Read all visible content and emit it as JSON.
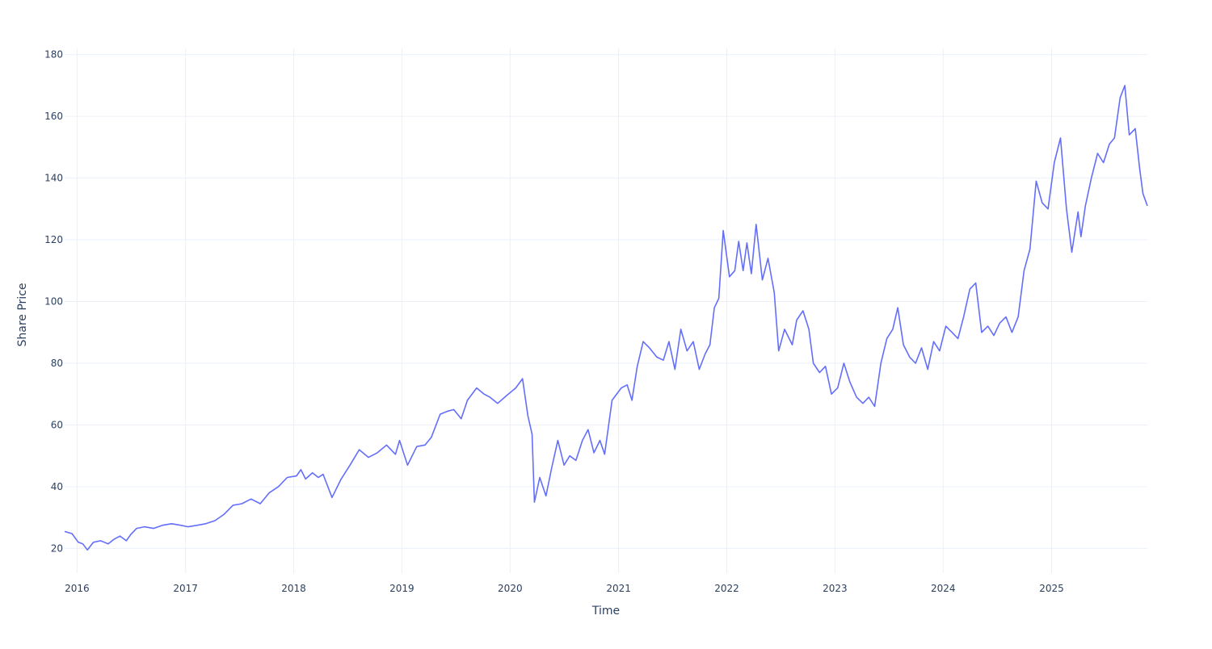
{
  "chart_data": {
    "type": "line",
    "title": "",
    "xlabel": "Time",
    "ylabel": "Share Price",
    "xlim": [
      "2015-11-20",
      "2025-11-20"
    ],
    "ylim": [
      12,
      182
    ],
    "x_ticks": [
      "2016",
      "2017",
      "2018",
      "2019",
      "2020",
      "2021",
      "2022",
      "2023",
      "2024",
      "2025"
    ],
    "y_ticks": [
      20,
      40,
      60,
      80,
      100,
      120,
      140,
      160,
      180
    ],
    "grid": true,
    "legend": "none",
    "series": [
      {
        "color": "#636efa",
        "x": [
          "2015-11-20",
          "2015-12-15",
          "2016-01-05",
          "2016-01-20",
          "2016-02-05",
          "2016-02-25",
          "2016-03-20",
          "2016-04-15",
          "2016-05-05",
          "2016-05-25",
          "2016-06-15",
          "2016-06-30",
          "2016-07-20",
          "2016-08-15",
          "2016-09-15",
          "2016-10-15",
          "2016-11-15",
          "2016-12-15",
          "2017-01-10",
          "2017-02-10",
          "2017-03-10",
          "2017-04-10",
          "2017-05-10",
          "2017-06-10",
          "2017-07-10",
          "2017-08-10",
          "2017-09-10",
          "2017-10-10",
          "2017-11-10",
          "2017-12-10",
          "2018-01-10",
          "2018-01-25",
          "2018-02-10",
          "2018-03-05",
          "2018-03-25",
          "2018-04-10",
          "2018-05-10",
          "2018-06-10",
          "2018-07-10",
          "2018-08-10",
          "2018-09-10",
          "2018-10-10",
          "2018-11-10",
          "2018-12-10",
          "2018-12-24",
          "2019-01-20",
          "2019-02-20",
          "2019-03-20",
          "2019-04-10",
          "2019-05-10",
          "2019-06-05",
          "2019-06-25",
          "2019-07-20",
          "2019-08-10",
          "2019-09-10",
          "2019-10-05",
          "2019-10-25",
          "2019-11-20",
          "2019-12-20",
          "2020-01-20",
          "2020-02-12",
          "2020-03-01",
          "2020-03-15",
          "2020-03-23",
          "2020-04-10",
          "2020-05-01",
          "2020-05-20",
          "2020-06-10",
          "2020-07-01",
          "2020-07-20",
          "2020-08-10",
          "2020-09-01",
          "2020-09-20",
          "2020-10-10",
          "2020-10-30",
          "2020-11-15",
          "2020-12-10",
          "2021-01-10",
          "2021-01-30",
          "2021-02-15",
          "2021-03-05",
          "2021-03-25",
          "2021-04-15",
          "2021-05-10",
          "2021-06-01",
          "2021-06-20",
          "2021-07-10",
          "2021-07-30",
          "2021-08-20",
          "2021-09-10",
          "2021-09-30",
          "2021-10-20",
          "2021-11-05",
          "2021-11-20",
          "2021-12-05",
          "2021-12-20",
          "2022-01-10",
          "2022-01-28",
          "2022-02-10",
          "2022-02-25",
          "2022-03-10",
          "2022-03-25",
          "2022-04-10",
          "2022-05-01",
          "2022-05-20",
          "2022-06-10",
          "2022-06-25",
          "2022-07-15",
          "2022-08-10",
          "2022-08-25",
          "2022-09-15",
          "2022-10-05",
          "2022-10-20",
          "2022-11-10",
          "2022-11-30",
          "2022-12-20",
          "2023-01-10",
          "2023-01-31",
          "2023-02-20",
          "2023-03-15",
          "2023-04-05",
          "2023-04-25",
          "2023-05-15",
          "2023-06-05",
          "2023-06-25",
          "2023-07-15",
          "2023-08-01",
          "2023-08-20",
          "2023-09-10",
          "2023-09-30",
          "2023-10-20",
          "2023-11-10",
          "2023-11-30",
          "2023-12-20",
          "2024-01-10",
          "2024-01-31",
          "2024-02-20",
          "2024-03-10",
          "2024-03-31",
          "2024-04-20",
          "2024-05-10",
          "2024-05-31",
          "2024-06-20",
          "2024-07-10",
          "2024-07-31",
          "2024-08-20",
          "2024-09-10",
          "2024-09-30",
          "2024-10-20",
          "2024-11-10",
          "2024-11-30",
          "2024-12-20",
          "2025-01-10",
          "2025-01-31",
          "2025-02-20",
          "2025-03-10",
          "2025-03-31",
          "2025-04-10",
          "2025-04-25",
          "2025-05-15",
          "2025-06-05",
          "2025-06-25",
          "2025-07-15",
          "2025-08-01",
          "2025-08-20",
          "2025-09-05",
          "2025-09-20",
          "2025-10-10",
          "2025-10-25",
          "2025-11-05",
          "2025-11-20"
        ],
        "y": [
          25.5,
          24.8,
          22,
          21.5,
          19.5,
          22,
          22.5,
          21.5,
          23,
          24,
          22.5,
          24.5,
          26.5,
          27,
          26.5,
          27.5,
          28,
          27.5,
          27,
          27.5,
          28,
          29,
          31,
          34,
          34.5,
          36,
          34.5,
          38,
          40,
          43,
          43.5,
          45.5,
          42.5,
          44.5,
          43,
          44,
          36.5,
          42.5,
          47,
          52,
          49.5,
          51,
          53.5,
          50.5,
          55,
          47,
          53,
          53.5,
          56,
          63.5,
          64.5,
          65,
          62,
          68,
          72,
          70,
          69,
          67,
          69.5,
          72,
          75,
          63,
          57,
          35,
          43,
          37,
          46,
          55,
          47,
          50,
          48.5,
          55,
          58.5,
          51,
          55,
          50.5,
          68,
          72,
          73,
          68,
          79,
          87,
          85,
          82,
          81,
          87,
          78,
          91,
          84,
          87,
          78,
          83,
          86,
          98,
          101,
          123,
          108,
          110,
          119.5,
          110,
          119,
          109,
          125,
          107,
          114,
          103,
          84,
          91,
          86,
          94,
          97,
          91,
          80,
          77,
          79,
          70,
          72,
          80,
          74,
          69,
          67,
          69,
          66,
          80,
          88,
          91,
          98,
          86,
          82,
          80,
          85,
          78,
          87,
          84,
          92,
          90,
          88,
          95,
          104,
          106,
          90,
          92,
          89,
          93,
          95,
          90,
          95,
          110,
          117,
          139,
          132,
          130,
          145,
          153,
          130,
          116,
          129,
          121,
          131,
          140,
          148,
          145,
          151,
          153,
          166,
          170,
          154,
          156,
          143,
          135,
          131
        ]
      }
    ]
  }
}
